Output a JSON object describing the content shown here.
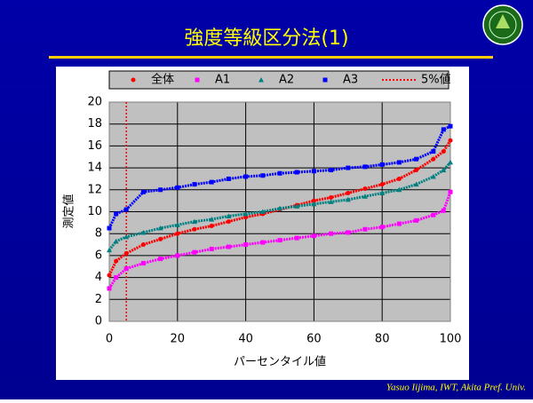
{
  "title": "強度等級区分法(1)",
  "footer": "Yasuo Iijima, IWT, Akita Pref.  Univ.",
  "chart_data": {
    "type": "scatter",
    "x_label": "パーセンタイル値",
    "y_label": "測定値",
    "x": [
      0,
      2,
      5,
      10,
      15,
      20,
      25,
      30,
      35,
      40,
      45,
      50,
      55,
      60,
      65,
      70,
      75,
      80,
      85,
      90,
      95,
      98,
      100
    ],
    "series": [
      {
        "name": "全体",
        "color": "#ff0000",
        "marker": "circle",
        "values": [
          4.2,
          5.5,
          6.2,
          7.0,
          7.5,
          8.0,
          8.4,
          8.7,
          9.1,
          9.5,
          9.8,
          10.2,
          10.6,
          11.0,
          11.3,
          11.7,
          12.1,
          12.5,
          13.0,
          13.8,
          14.8,
          15.5,
          16.5
        ]
      },
      {
        "name": "A1",
        "color": "#ff00ff",
        "marker": "square",
        "values": [
          3.0,
          4.0,
          4.8,
          5.3,
          5.7,
          6.0,
          6.3,
          6.6,
          6.8,
          7.0,
          7.2,
          7.4,
          7.6,
          7.8,
          8.0,
          8.1,
          8.4,
          8.6,
          8.9,
          9.2,
          9.7,
          10.1,
          11.8
        ]
      },
      {
        "name": "A2",
        "color": "#008080",
        "marker": "triangle",
        "values": [
          6.5,
          7.3,
          7.7,
          8.1,
          8.5,
          8.8,
          9.1,
          9.3,
          9.6,
          9.8,
          10.0,
          10.3,
          10.5,
          10.7,
          10.9,
          11.1,
          11.4,
          11.7,
          12.0,
          12.5,
          13.2,
          13.8,
          14.5
        ]
      },
      {
        "name": "A3",
        "color": "#0000ff",
        "marker": "square",
        "values": [
          8.5,
          9.8,
          10.2,
          11.8,
          12.0,
          12.2,
          12.5,
          12.7,
          13.0,
          13.2,
          13.3,
          13.5,
          13.6,
          13.7,
          13.8,
          14.0,
          14.1,
          14.3,
          14.5,
          14.8,
          15.5,
          17.5,
          17.8
        ]
      }
    ],
    "vline": {
      "name": "5%値",
      "x": 5,
      "color": "#ff0000"
    },
    "xlim": [
      0,
      100
    ],
    "xticks": [
      0,
      20,
      40,
      60,
      80,
      100
    ],
    "ylim": [
      0,
      20
    ],
    "yticks": [
      0,
      2,
      4,
      6,
      8,
      10,
      12,
      14,
      16,
      18,
      20
    ],
    "grid": true
  }
}
